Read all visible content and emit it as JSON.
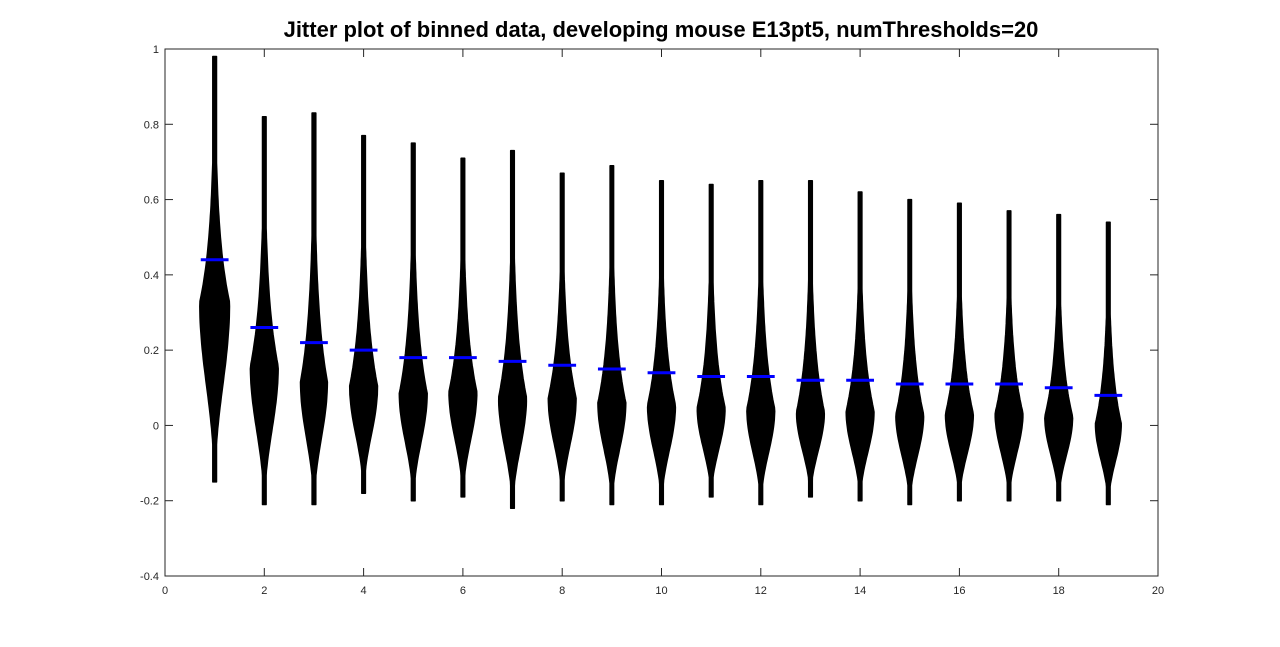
{
  "chart_data": {
    "type": "violin",
    "title": "Jitter plot of binned data, developing mouse E13pt5, numThresholds=20",
    "xlabel": "",
    "ylabel": "",
    "xlim": [
      0,
      20
    ],
    "ylim": [
      -0.4,
      1
    ],
    "x_ticks": [
      "0",
      "2",
      "4",
      "6",
      "8",
      "10",
      "12",
      "14",
      "16",
      "18",
      "20"
    ],
    "y_ticks": [
      "-0.4",
      "-0.2",
      "0",
      "0.2",
      "0.4",
      "0.6",
      "0.8",
      "1"
    ],
    "grid": false,
    "legend": "none",
    "point_color": "#000000",
    "mean_color": "#0000ff",
    "bins": [
      {
        "x": 1,
        "mean": 0.44,
        "min": -0.15,
        "max": 0.98,
        "max_halfwidth": 0.3
      },
      {
        "x": 2,
        "mean": 0.26,
        "min": -0.21,
        "max": 0.82,
        "max_halfwidth": 0.28
      },
      {
        "x": 3,
        "mean": 0.22,
        "min": -0.21,
        "max": 0.83,
        "max_halfwidth": 0.27
      },
      {
        "x": 4,
        "mean": 0.2,
        "min": -0.18,
        "max": 0.77,
        "max_halfwidth": 0.28
      },
      {
        "x": 5,
        "mean": 0.18,
        "min": -0.2,
        "max": 0.75,
        "max_halfwidth": 0.28
      },
      {
        "x": 6,
        "mean": 0.18,
        "min": -0.19,
        "max": 0.71,
        "max_halfwidth": 0.28
      },
      {
        "x": 7,
        "mean": 0.17,
        "min": -0.22,
        "max": 0.73,
        "max_halfwidth": 0.28
      },
      {
        "x": 8,
        "mean": 0.16,
        "min": -0.2,
        "max": 0.67,
        "max_halfwidth": 0.28
      },
      {
        "x": 9,
        "mean": 0.15,
        "min": -0.21,
        "max": 0.69,
        "max_halfwidth": 0.28
      },
      {
        "x": 10,
        "mean": 0.14,
        "min": -0.21,
        "max": 0.65,
        "max_halfwidth": 0.28
      },
      {
        "x": 11,
        "mean": 0.13,
        "min": -0.19,
        "max": 0.64,
        "max_halfwidth": 0.28
      },
      {
        "x": 12,
        "mean": 0.13,
        "min": -0.21,
        "max": 0.65,
        "max_halfwidth": 0.28
      },
      {
        "x": 13,
        "mean": 0.12,
        "min": -0.19,
        "max": 0.65,
        "max_halfwidth": 0.28
      },
      {
        "x": 14,
        "mean": 0.12,
        "min": -0.2,
        "max": 0.62,
        "max_halfwidth": 0.28
      },
      {
        "x": 15,
        "mean": 0.11,
        "min": -0.21,
        "max": 0.6,
        "max_halfwidth": 0.28
      },
      {
        "x": 16,
        "mean": 0.11,
        "min": -0.2,
        "max": 0.59,
        "max_halfwidth": 0.28
      },
      {
        "x": 17,
        "mean": 0.11,
        "min": -0.2,
        "max": 0.57,
        "max_halfwidth": 0.28
      },
      {
        "x": 18,
        "mean": 0.1,
        "min": -0.2,
        "max": 0.56,
        "max_halfwidth": 0.28
      },
      {
        "x": 19,
        "mean": 0.08,
        "min": -0.21,
        "max": 0.54,
        "max_halfwidth": 0.26
      }
    ]
  }
}
